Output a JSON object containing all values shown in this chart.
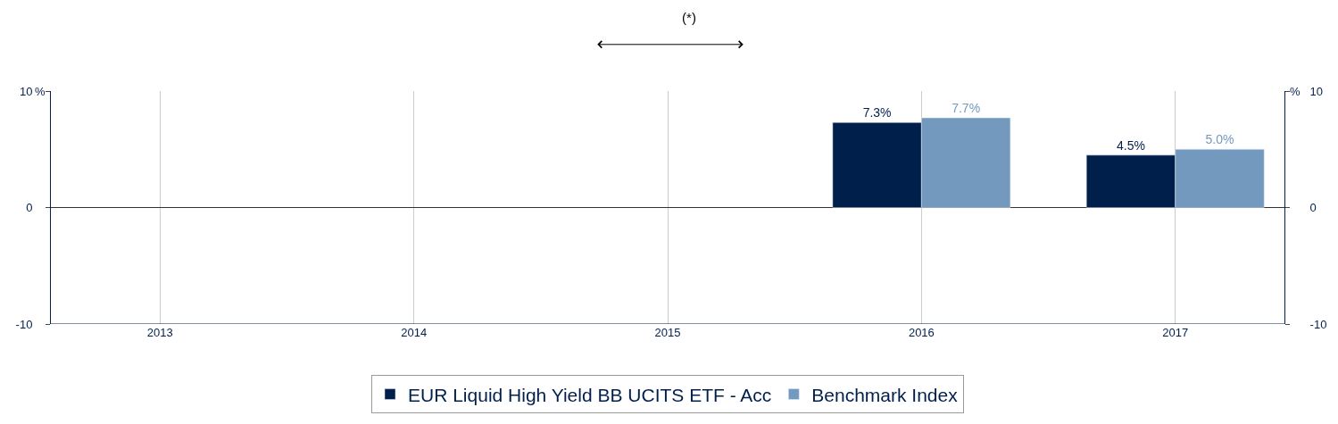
{
  "chart_data": {
    "type": "bar",
    "title": "(*)",
    "ylabel": "%",
    "y2label": "%",
    "categories": [
      "2013",
      "2014",
      "2015",
      "2016",
      "2017"
    ],
    "series": [
      {
        "name": "EUR Liquid High Yield BB UCITS ETF - Acc",
        "color": "#001f4b",
        "values": [
          null,
          null,
          null,
          7.3,
          4.5
        ],
        "value_labels": [
          null,
          null,
          null,
          "7.3%",
          "4.5%"
        ]
      },
      {
        "name": "Benchmark Index",
        "color": "#7399bf",
        "values": [
          null,
          null,
          null,
          7.7,
          5.0
        ],
        "value_labels": [
          null,
          null,
          null,
          "7.7%",
          "5.0%"
        ]
      }
    ],
    "ylim": [
      -10,
      10
    ],
    "yticks": [
      -10,
      0,
      10
    ],
    "y2lim": [
      -10,
      10
    ],
    "y2ticks": [
      -10,
      0,
      10
    ],
    "grid": true,
    "legend": "bottom"
  }
}
